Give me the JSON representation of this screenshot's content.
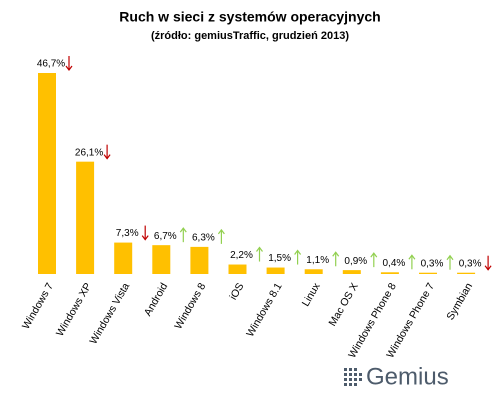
{
  "chart_data": {
    "type": "bar",
    "title": "Ruch w sieci z systemów operacyjnych",
    "subtitle": "(źródło: gemiusTraffic, grudzień 2013)",
    "categories": [
      "Windows 7",
      "Windows XP",
      "Windows Vista",
      "Android",
      "Windows 8",
      "iOS",
      "Windows 8.1",
      "Linux",
      "Mac OS X",
      "Windows Phone 8",
      "Windows Phone 7",
      "Symbian"
    ],
    "values": [
      46.7,
      26.1,
      7.3,
      6.7,
      6.3,
      2.2,
      1.5,
      1.1,
      0.9,
      0.4,
      0.3,
      0.3
    ],
    "value_labels": [
      "46,7%",
      "26,1%",
      "7,3%",
      "6,7%",
      "6,3%",
      "2,2%",
      "1,5%",
      "1,1%",
      "0,9%",
      "0,4%",
      "0,3%",
      "0,3%"
    ],
    "trend": [
      "down",
      "down",
      "down",
      "up",
      "up",
      "up",
      "up",
      "up",
      "up",
      "up",
      "up",
      "down"
    ],
    "color": "#ffc000",
    "up_color": "#92d050",
    "down_color": "#c00000",
    "logo": "Gemius"
  }
}
